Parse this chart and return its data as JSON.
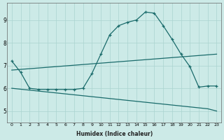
{
  "xlabel": "Humidex (Indice chaleur)",
  "bg_color": "#cceae7",
  "grid_color": "#aad4d0",
  "line_color": "#1a6b6b",
  "x_ticks": [
    0,
    1,
    2,
    3,
    4,
    5,
    6,
    7,
    8,
    9,
    10,
    11,
    12,
    13,
    14,
    15,
    16,
    17,
    18,
    19,
    20,
    21,
    22,
    23
  ],
  "ylim": [
    4.5,
    9.75
  ],
  "xlim": [
    -0.5,
    23.5
  ],
  "series1_x": [
    0,
    1,
    2,
    3,
    4,
    5,
    6,
    7,
    8,
    9,
    10,
    11,
    12,
    13,
    14,
    15,
    16,
    17,
    18,
    19,
    20,
    21,
    22,
    23
  ],
  "series1_y": [
    7.2,
    6.7,
    6.0,
    5.95,
    5.95,
    5.95,
    5.95,
    5.95,
    6.0,
    6.65,
    7.5,
    8.35,
    8.75,
    8.9,
    9.0,
    9.35,
    9.3,
    8.75,
    8.15,
    7.5,
    6.95,
    6.05,
    6.1,
    6.1
  ],
  "series2_x": [
    0,
    23
  ],
  "series2_y": [
    6.8,
    7.5
  ],
  "series3_x": [
    0,
    22,
    23
  ],
  "series3_y": [
    6.0,
    5.1,
    5.0
  ]
}
